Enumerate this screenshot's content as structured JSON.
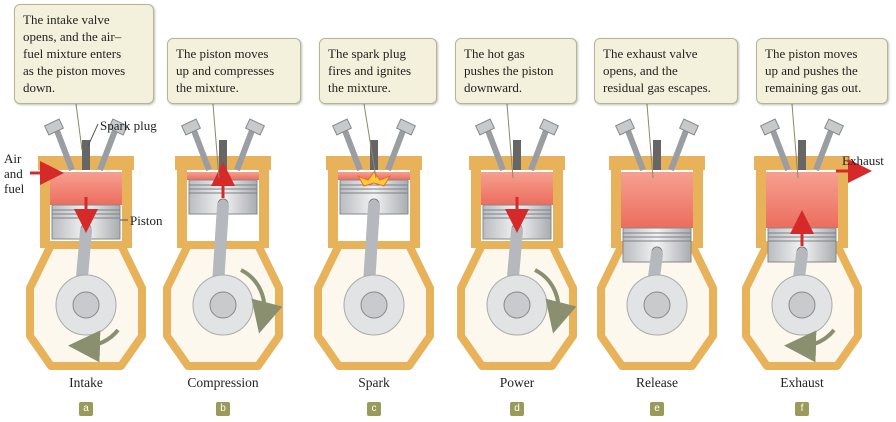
{
  "callouts": [
    "The intake valve\nopens, and the air–\nfuel mixture enters\nas the piston moves\ndown.",
    "The piston moves\nup and compresses\nthe mixture.",
    "The spark plug\nfires and ignites\nthe mixture.",
    "The hot gas\npushes the piston\ndownward.",
    "The exhaust valve\nopens, and the\nresidual gas escapes.",
    "The piston moves\nup and pushes the\nremaining gas out."
  ],
  "stages": [
    "Intake",
    "Compression",
    "Spark",
    "Power",
    "Release",
    "Exhaust"
  ],
  "panels": [
    "a",
    "b",
    "c",
    "d",
    "e",
    "f"
  ],
  "labels": {
    "spark_plug": "Spark plug",
    "piston": "Piston",
    "air_and_fuel": "Air\nand\nfuel",
    "exhaust": "Exhaust"
  },
  "colors": {
    "engine_frame": "#e8b25a",
    "gas_mixture": "#f08070",
    "arrow": "#d62a2a",
    "callout_bg": "#f3f1dc",
    "badge": "#9a9a5a"
  },
  "piston_motion": [
    "down",
    "up",
    "none",
    "down",
    "none",
    "up"
  ],
  "crank_rotation": [
    "counterclockwise",
    "clockwise",
    "none",
    "clockwise",
    "none",
    "counterclockwise"
  ]
}
